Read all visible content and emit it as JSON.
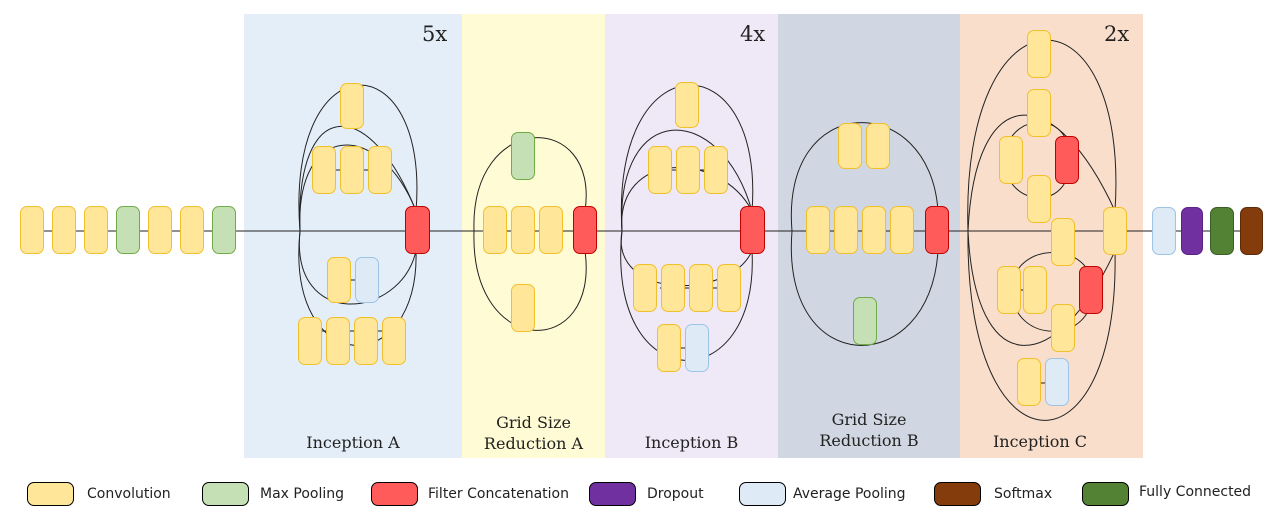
{
  "colors": {
    "convolution": "#ffe699",
    "max_pooling": "#c5e0b4",
    "filter_concatenation": "#ff5b5b",
    "dropout": "#7030a0",
    "average_pooling": "#deebf7",
    "softmax": "#843c0c",
    "fully_connected": "#548235"
  },
  "sections": [
    {
      "name_lines": [
        "Inception A"
      ],
      "repeat": "5x",
      "background": "#e4eef9"
    },
    {
      "name_lines": [
        "Grid Size",
        "Reduction A"
      ],
      "repeat": "",
      "background": "#fffbd5"
    },
    {
      "name_lines": [
        "Inception B"
      ],
      "repeat": "4x",
      "background": "#efe8f6"
    },
    {
      "name_lines": [
        "Grid Size",
        "Reduction B"
      ],
      "repeat": "",
      "background": "#d1d7e2"
    },
    {
      "name_lines": [
        "Inception C"
      ],
      "repeat": "2x",
      "background": "#f9dfcb"
    }
  ],
  "legend": [
    {
      "label": "Convolution",
      "type": "convolution"
    },
    {
      "label": "Max Pooling",
      "type": "max_pooling"
    },
    {
      "label": "Filter Concatenation",
      "type": "filter_concatenation"
    },
    {
      "label": "Dropout",
      "type": "dropout"
    },
    {
      "label": "Average Pooling",
      "type": "average_pooling"
    },
    {
      "label": "Softmax",
      "type": "softmax"
    },
    {
      "label": "Fully Connected",
      "type": "fully_connected"
    }
  ]
}
